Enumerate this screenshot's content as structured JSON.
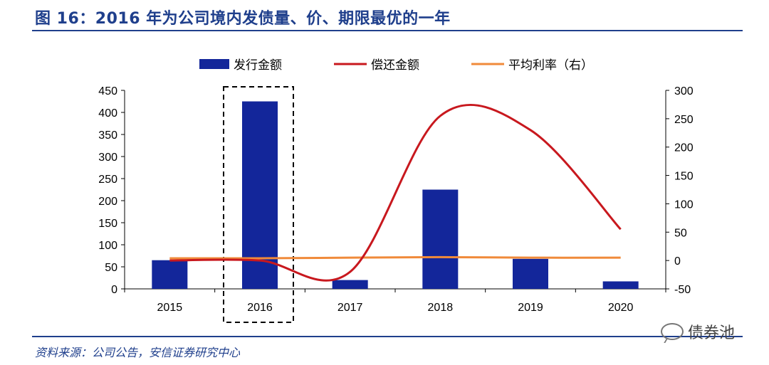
{
  "title": "图 16：2016 年为公司境内发债量、价、期限最优的一年",
  "source": "资料来源：公司公告，安信证券研究中心",
  "watermark": "债券池",
  "colors": {
    "bar": "#13269a",
    "repay": "#c8181e",
    "rate": "#f08a3a",
    "brand": "#1f3f8c"
  },
  "chart_data": {
    "type": "bar",
    "categories": [
      "2015",
      "2016",
      "2017",
      "2018",
      "2019",
      "2020"
    ],
    "series": [
      {
        "name": "发行金额",
        "type": "bar",
        "axis": "left",
        "values": [
          65,
          425,
          20,
          225,
          68,
          17
        ]
      },
      {
        "name": "偿还金额",
        "type": "line",
        "axis": "right",
        "smooth": true,
        "values": [
          0,
          0,
          -20,
          255,
          230,
          55
        ]
      },
      {
        "name": "平均利率（右）",
        "type": "line",
        "axis": "right",
        "values": [
          4,
          4,
          5,
          6,
          5,
          5
        ]
      }
    ],
    "highlight_category": "2016",
    "ylim_left": [
      0,
      450
    ],
    "yticks_left": [
      "0",
      "50",
      "100",
      "150",
      "200",
      "250",
      "300",
      "350",
      "400",
      "450"
    ],
    "ylim_right": [
      -50,
      300
    ],
    "yticks_right": [
      "-50",
      "0",
      "50",
      "100",
      "150",
      "200",
      "250",
      "300"
    ],
    "legend_position": "top",
    "grid": false
  }
}
